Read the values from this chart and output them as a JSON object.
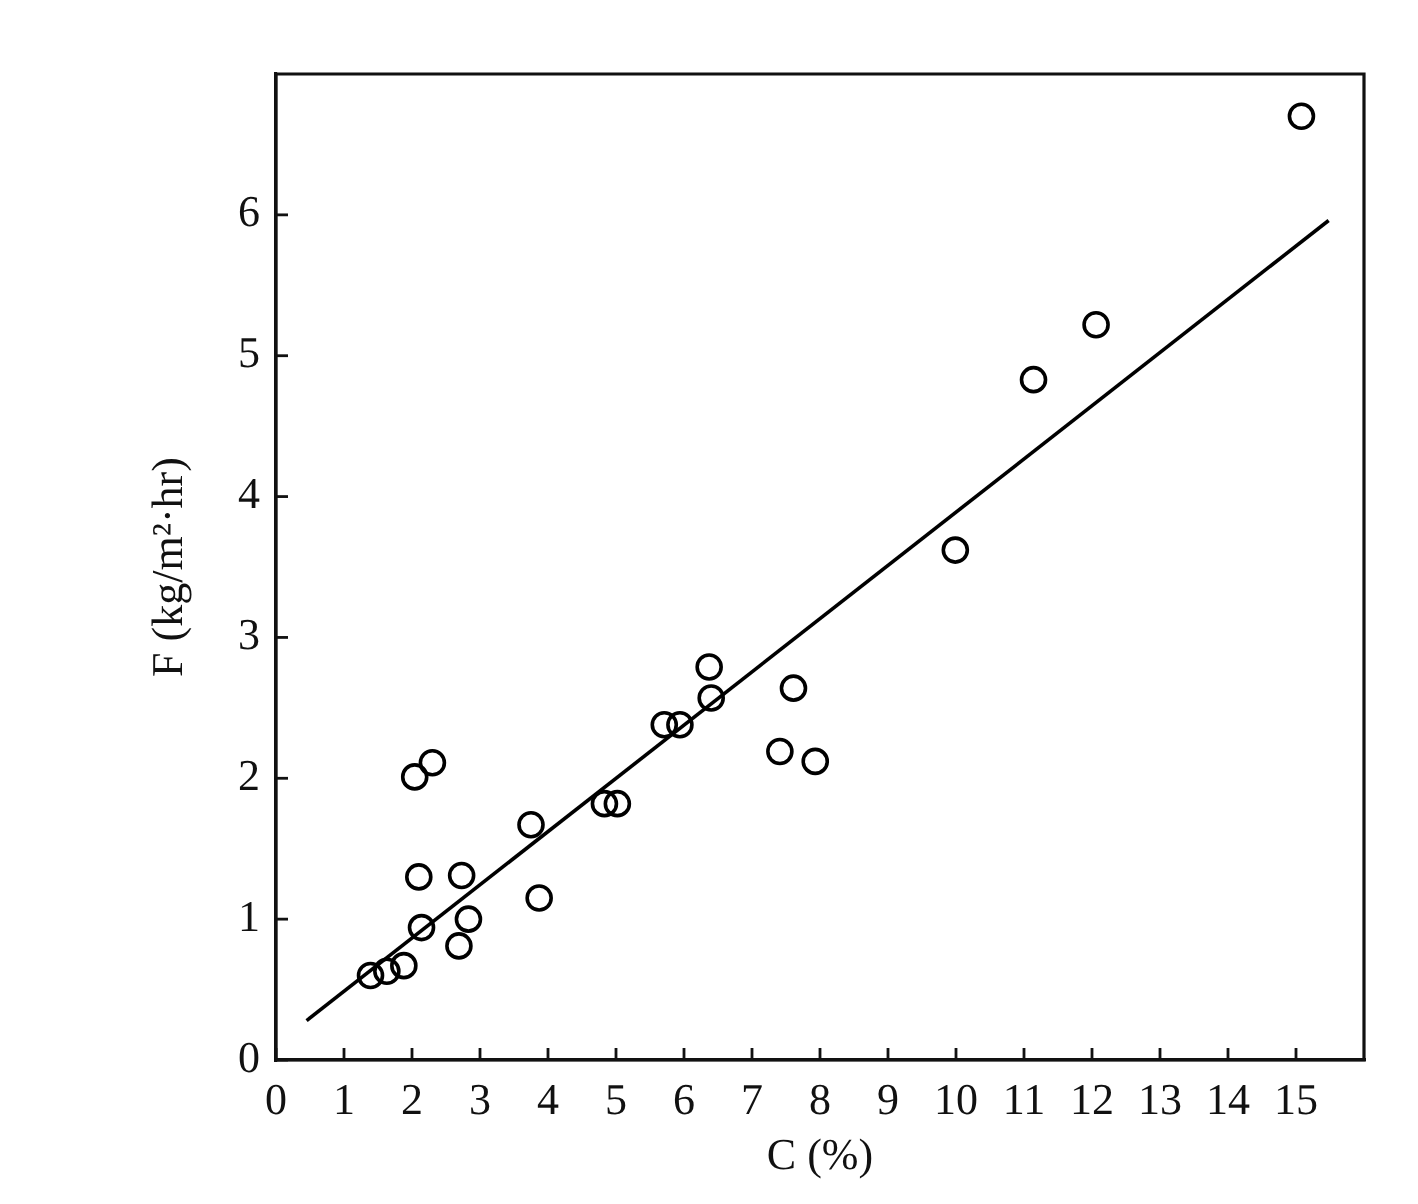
{
  "chart_data": {
    "type": "scatter",
    "xlabel": "C (%)",
    "ylabel": "F (kg/m²·hr)",
    "xlim": [
      0,
      16
    ],
    "ylim": [
      0,
      7
    ],
    "xticks": [
      0,
      1,
      2,
      3,
      4,
      5,
      6,
      7,
      8,
      9,
      10,
      11,
      12,
      13,
      14,
      15
    ],
    "yticks": [
      0,
      1,
      2,
      3,
      4,
      5,
      6
    ],
    "marker": "circle",
    "series": [
      {
        "color": "#000000",
        "x": [
          1.39,
          1.63,
          1.88,
          2.14,
          2.1,
          2.04,
          2.3,
          2.73,
          2.83,
          2.69,
          3.75,
          3.87,
          4.83,
          5.02,
          5.71,
          5.94,
          6.37,
          6.4,
          7.61,
          7.41,
          7.93,
          9.99,
          11.14,
          12.06,
          15.08
        ],
        "values": [
          0.6,
          0.63,
          0.67,
          0.94,
          1.3,
          2.01,
          2.11,
          1.31,
          1.0,
          0.81,
          1.67,
          1.15,
          1.82,
          1.82,
          2.38,
          2.38,
          2.79,
          2.57,
          2.64,
          2.19,
          2.12,
          3.62,
          4.83,
          5.22,
          6.7
        ]
      },
      {
        "type": "line",
        "color": "#000000",
        "marker": "none",
        "x": [
          0.45,
          15.48
        ],
        "values": [
          0.28,
          5.96
        ]
      }
    ]
  }
}
